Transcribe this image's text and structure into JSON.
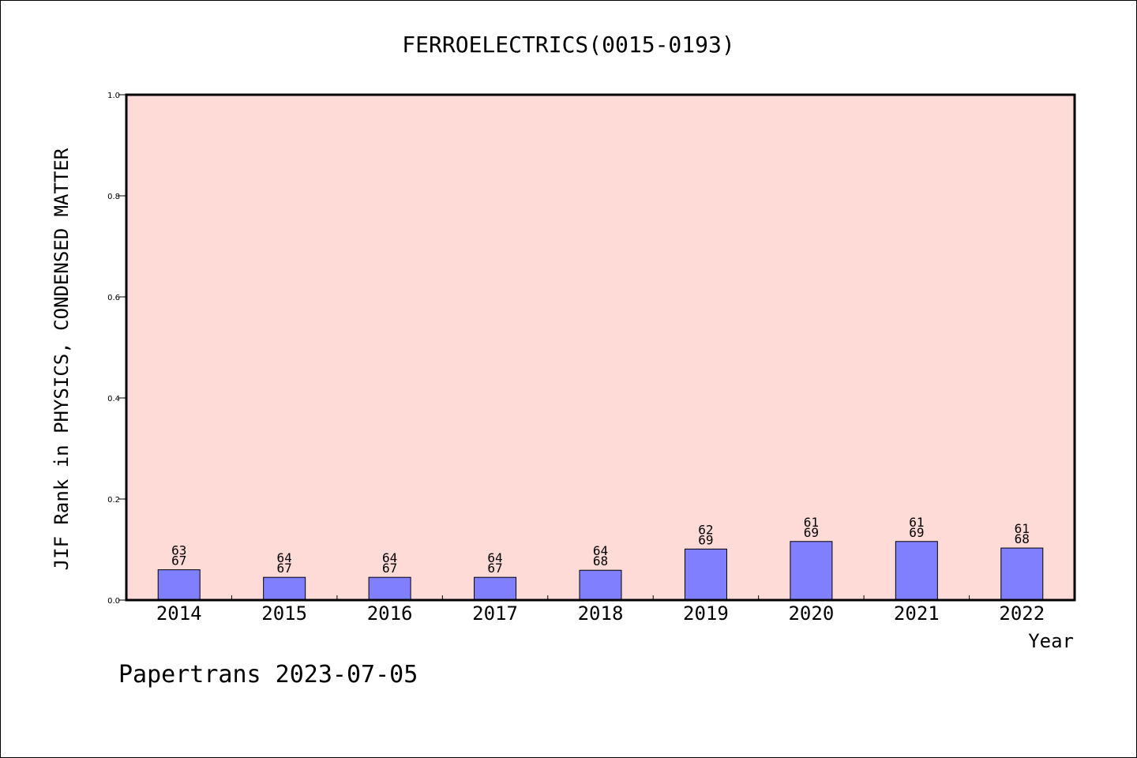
{
  "footer": "Papertrans 2023-07-05",
  "chart_data": {
    "type": "bar",
    "title": "FERROELECTRICS(0015-0193)",
    "xlabel": "Year",
    "ylabel": "JIF Rank in PHYSICS, CONDENSED MATTER",
    "categories": [
      "2014",
      "2015",
      "2016",
      "2017",
      "2018",
      "2019",
      "2020",
      "2021",
      "2022"
    ],
    "values": [
      0.06,
      0.045,
      0.045,
      0.045,
      0.059,
      0.101,
      0.116,
      0.116,
      0.103
    ],
    "data_labels": [
      {
        "rank": "63",
        "total": "67"
      },
      {
        "rank": "64",
        "total": "67"
      },
      {
        "rank": "64",
        "total": "67"
      },
      {
        "rank": "64",
        "total": "67"
      },
      {
        "rank": "64",
        "total": "68"
      },
      {
        "rank": "62",
        "total": "69"
      },
      {
        "rank": "61",
        "total": "69"
      },
      {
        "rank": "61",
        "total": "69"
      },
      {
        "rank": "61",
        "total": "68"
      }
    ],
    "ylim": [
      0,
      1.0
    ],
    "yticks": [
      "0.0",
      "0.2",
      "0.4",
      "0.6",
      "0.8",
      "1.0"
    ],
    "grid": false,
    "colors": {
      "plot_background": "#ffdbd8",
      "bar_fill": "#8080ff",
      "bar_stroke": "#000000"
    }
  }
}
